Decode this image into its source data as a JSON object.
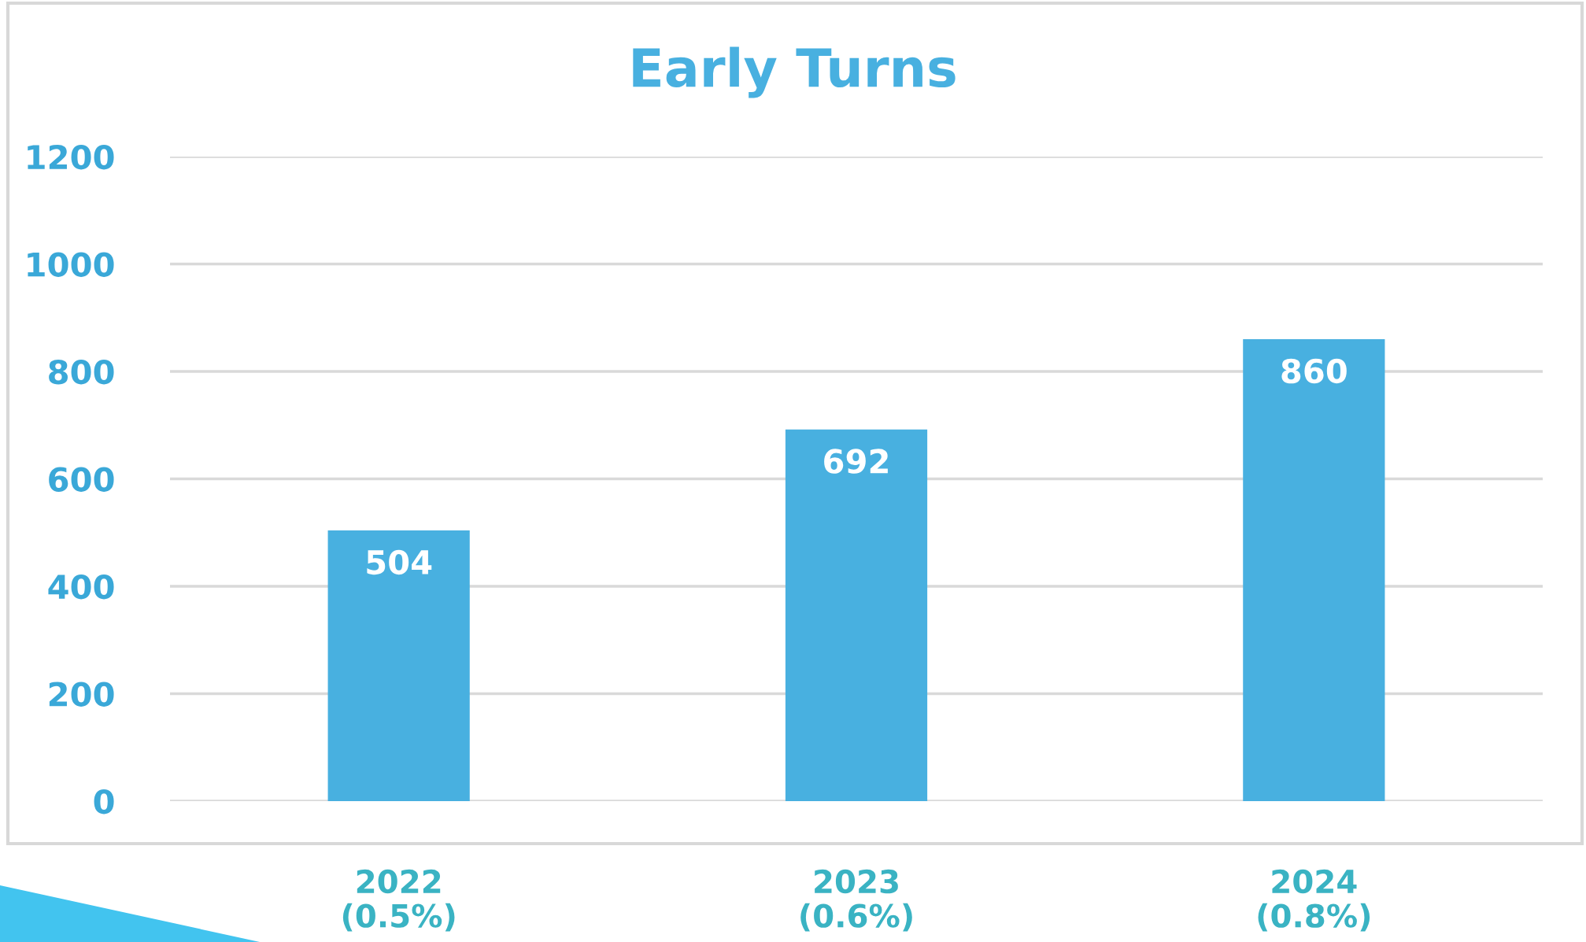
{
  "chart_data": {
    "type": "bar",
    "title": "Early Turns",
    "categories": [
      "2022\n(0.5%)",
      "2023\n(0.6%)",
      "2024\n(0.8%)"
    ],
    "values": [
      504,
      692,
      860
    ],
    "color": "#48b0e0",
    "ylim": [
      0,
      1200
    ],
    "yticks": [
      0,
      200,
      400,
      600,
      800,
      1000,
      1200
    ],
    "grid": "y",
    "data_labels": true,
    "legend": false
  }
}
